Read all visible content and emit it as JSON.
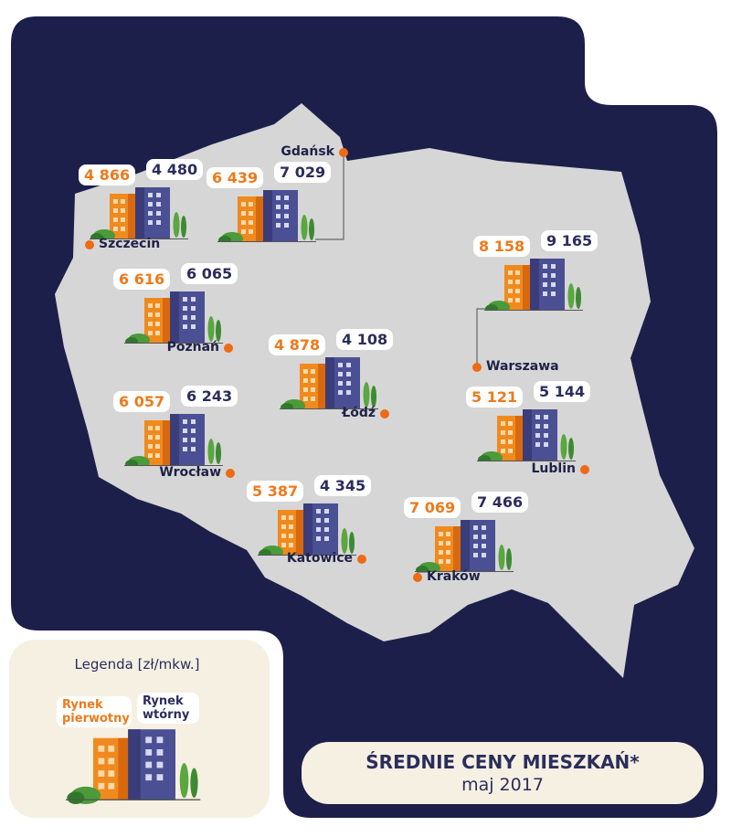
{
  "title": "ŚREDNIE CENY MIESZKAŃ*",
  "subtitle": "maj 2017",
  "legend": {
    "title": "Legenda [zł/mkw.]",
    "primary": "Rynek pierwotny",
    "secondary": "Rynek wtórny"
  },
  "cities": [
    {
      "name": "Szczecin",
      "primary": "4 866",
      "secondary": "4 480"
    },
    {
      "name": "Gdańsk",
      "primary": "6 439",
      "secondary": "7 029"
    },
    {
      "name": "Poznań",
      "primary": "6 616",
      "secondary": "6 065"
    },
    {
      "name": "Łódź",
      "primary": "4 878",
      "secondary": "4 108"
    },
    {
      "name": "Warszawa",
      "primary": "8 158",
      "secondary": "9 165"
    },
    {
      "name": "Wrocław",
      "primary": "6 057",
      "secondary": "6 243"
    },
    {
      "name": "Lublin",
      "primary": "5 121",
      "secondary": "5 144"
    },
    {
      "name": "Katowice",
      "primary": "5 387",
      "secondary": "4 345"
    },
    {
      "name": "Kraków",
      "primary": "7 069",
      "secondary": "7 466"
    }
  ]
}
